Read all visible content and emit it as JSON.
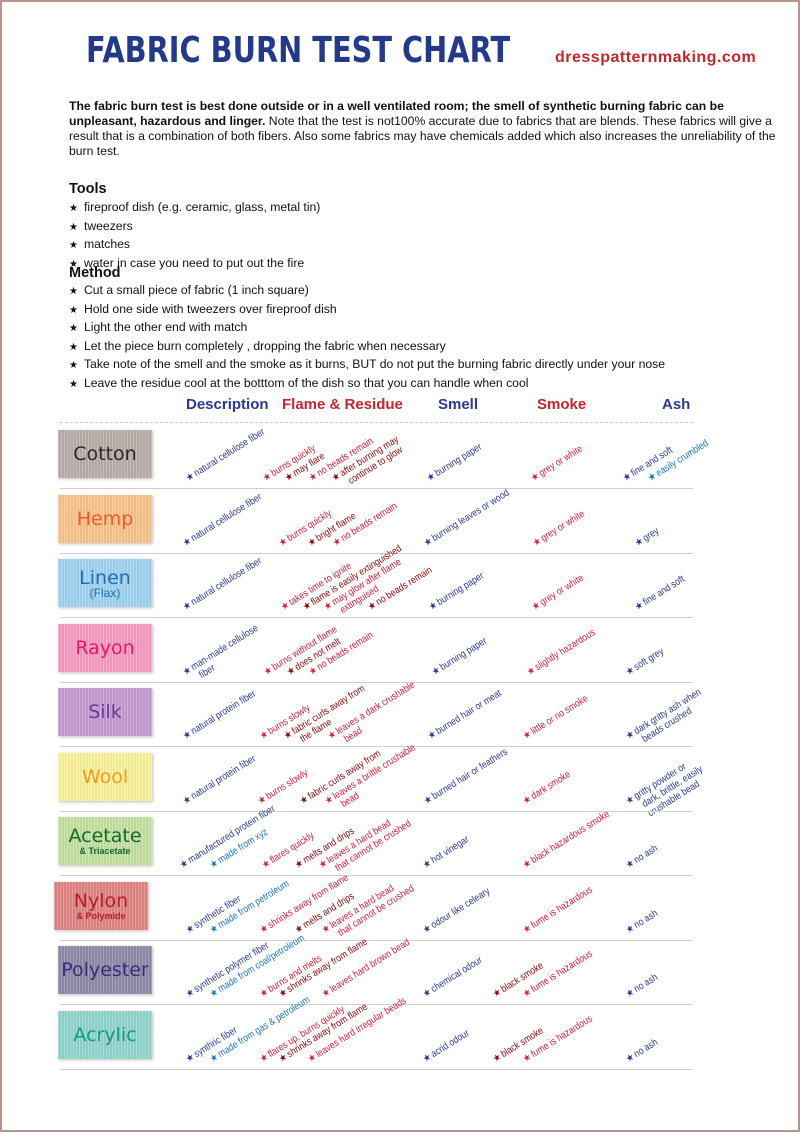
{
  "header": {
    "title": "FABRIC BURN TEST CHART",
    "site": "dresspatternmaking.com"
  },
  "intro": {
    "bold": "The fabric burn test is best done outside or in a well ventilated room; the smell of synthetic burning fabric can be unpleasant, hazardous and linger.",
    "rest": "  Note that the test is not100% accurate due to fabrics that are blends. These fabrics will give a result that is a combination of both fibers.  Also some fabrics may have chemicals added which also increases the unreliability of the burn test."
  },
  "tools": {
    "heading": "Tools",
    "items": [
      "fireproof dish (e.g. ceramic, glass, metal tin)",
      "tweezers",
      "matches",
      "water in case you need to put out the fire"
    ]
  },
  "method": {
    "heading": "Method",
    "items": [
      "Cut a small piece of fabric (1 inch square)",
      "Hold one side with tweezers over fireproof dish",
      "Light the other end with match",
      "Let the piece burn completely ,  dropping the fabric when necessary",
      "Take note of the smell and the smoke as it burns,  BUT do not put the burning fabric directly under your nose",
      "Leave the residue cool at the botttom of the dish so that you can handle when cool"
    ]
  },
  "bullet_icon": "star-icon",
  "columns": [
    "Description",
    "Flame & Residue",
    "Smell",
    "Smoke",
    "Ash"
  ],
  "colors": {
    "navy": "#2b3990",
    "lightblue": "#1c75bc",
    "red": "#d0243c",
    "darkred": "#8b0a0a"
  },
  "rows": [
    {
      "name": "Cotton",
      "sub": "",
      "text_color": "#2a2a2a",
      "bg": "#b9aeaa",
      "items": [
        {
          "lines": [
            "natural cellulose fiber"
          ],
          "c": "navy"
        },
        {
          "lines": [
            "burns quickly"
          ],
          "c": "red"
        },
        {
          "lines": [
            "may flare"
          ],
          "c": "darkred"
        },
        {
          "lines": [
            "no beads remain"
          ],
          "c": "red"
        },
        {
          "lines": [
            "after burning may",
            "continue to glow"
          ],
          "c": "darkred"
        },
        {
          "lines": [
            "burning paper"
          ],
          "c": "navy"
        },
        {
          "lines": [
            "grey or white"
          ],
          "c": "red"
        },
        {
          "lines": [
            "fine and soft"
          ],
          "c": "navy"
        },
        {
          "lines": [
            "easily crumbled"
          ],
          "c": "lightblue"
        }
      ]
    },
    {
      "name": "Hemp",
      "sub": "",
      "text_color": "#f05a28",
      "bg": "#f9c48e",
      "items": [
        {
          "lines": [
            "natural cellulose fiber"
          ],
          "c": "navy"
        },
        {
          "lines": [
            "burns quickly"
          ],
          "c": "red"
        },
        {
          "lines": [
            "bright flame"
          ],
          "c": "darkred"
        },
        {
          "lines": [
            "no beads remain"
          ],
          "c": "red"
        },
        {
          "lines": [
            "burning leaves or wood"
          ],
          "c": "navy"
        },
        {
          "lines": [
            "grey or white"
          ],
          "c": "red"
        },
        {
          "lines": [
            "grey"
          ],
          "c": "navy"
        }
      ]
    },
    {
      "name": "Linen",
      "sub": "(Flax)",
      "text_color": "#1f6fb5",
      "bg": "#a0d4f0",
      "items": [
        {
          "lines": [
            "natural cellulose fiber"
          ],
          "c": "navy"
        },
        {
          "lines": [
            "takes time to ignite"
          ],
          "c": "red"
        },
        {
          "lines": [
            "flame is easily extinguished"
          ],
          "c": "darkred"
        },
        {
          "lines": [
            "may glow after flame",
            "extinguised"
          ],
          "c": "red"
        },
        {
          "lines": [
            "no beads remain"
          ],
          "c": "darkred"
        },
        {
          "lines": [
            "burning paper"
          ],
          "c": "navy"
        },
        {
          "lines": [
            "grey or white"
          ],
          "c": "red"
        },
        {
          "lines": [
            "fine and soft"
          ],
          "c": "navy"
        }
      ]
    },
    {
      "name": "Rayon",
      "sub": "",
      "text_color": "#e8176e",
      "bg": "#f59cc2",
      "items": [
        {
          "lines": [
            "man-made cellulose",
            "fiber"
          ],
          "c": "navy"
        },
        {
          "lines": [
            "burns without flame"
          ],
          "c": "red"
        },
        {
          "lines": [
            "does not melt"
          ],
          "c": "darkred"
        },
        {
          "lines": [
            "no beads remain"
          ],
          "c": "red"
        },
        {
          "lines": [
            "burning paper"
          ],
          "c": "navy"
        },
        {
          "lines": [
            "slightly hazardous"
          ],
          "c": "red"
        },
        {
          "lines": [
            "soft grey"
          ],
          "c": "navy"
        }
      ]
    },
    {
      "name": "Silk",
      "sub": "",
      "text_color": "#6a3a9a",
      "bg": "#c69bd2",
      "items": [
        {
          "lines": [
            "natural protein fiber"
          ],
          "c": "navy"
        },
        {
          "lines": [
            "burns slowly"
          ],
          "c": "red"
        },
        {
          "lines": [
            "fabric curls away from",
            "the flame"
          ],
          "c": "darkred"
        },
        {
          "lines": [
            "leaves a dark crushable",
            "bead"
          ],
          "c": "red"
        },
        {
          "lines": [
            "burned hair or meat"
          ],
          "c": "navy"
        },
        {
          "lines": [
            "little or no smoke"
          ],
          "c": "red"
        },
        {
          "lines": [
            "dark gritty ash when",
            "beads crushed"
          ],
          "c": "navy"
        }
      ]
    },
    {
      "name": "Wool",
      "sub": "",
      "text_color": "#f29b1f",
      "bg": "#faf39c",
      "items": [
        {
          "lines": [
            "natural protein fiber"
          ],
          "c": "navy"
        },
        {
          "lines": [
            "burns slowly"
          ],
          "c": "red"
        },
        {
          "lines": [
            "fabric curls away from"
          ],
          "c": "darkred"
        },
        {
          "lines": [
            "leaves a brittle crushable",
            "bead"
          ],
          "c": "red"
        },
        {
          "lines": [
            "burned hair or feathers"
          ],
          "c": "navy"
        },
        {
          "lines": [
            "dark smoke"
          ],
          "c": "red"
        },
        {
          "lines": [
            "gritty powder or",
            "dark, brittle, easily",
            "crushable bead"
          ],
          "c": "navy"
        }
      ]
    },
    {
      "name": "Acetate",
      "sub": "& Triacetate",
      "text_color": "#0f6b2f",
      "bg": "#c6e1a2",
      "items": [
        {
          "lines": [
            "manufactured protein fiber"
          ],
          "c": "navy"
        },
        {
          "lines": [
            "made from xyz"
          ],
          "c": "lightblue"
        },
        {
          "lines": [
            "flares quickly"
          ],
          "c": "red"
        },
        {
          "lines": [
            "melts and drips"
          ],
          "c": "darkred"
        },
        {
          "lines": [
            "leaves a hard bead",
            "that cannot be crushed"
          ],
          "c": "red"
        },
        {
          "lines": [
            "hot vinegar"
          ],
          "c": "navy"
        },
        {
          "lines": [
            "black hazardous smoke"
          ],
          "c": "red"
        },
        {
          "lines": [
            "no ash"
          ],
          "c": "navy"
        }
      ]
    },
    {
      "name": "Nylon",
      "sub": "& Polymide",
      "text_color": "#b52025",
      "bg": "#e08584",
      "items": [
        {
          "lines": [
            "synthetic fiber"
          ],
          "c": "navy"
        },
        {
          "lines": [
            "made from petroleum"
          ],
          "c": "lightblue"
        },
        {
          "lines": [
            "shrinks away from flame"
          ],
          "c": "red"
        },
        {
          "lines": [
            "melts and drips"
          ],
          "c": "darkred"
        },
        {
          "lines": [
            "leaves a hard bead",
            "that cannot be crushed"
          ],
          "c": "red"
        },
        {
          "lines": [
            "odour like celeary"
          ],
          "c": "navy"
        },
        {
          "lines": [
            "fume is hazardous"
          ],
          "c": "red"
        },
        {
          "lines": [
            "no ash"
          ],
          "c": "navy"
        }
      ]
    },
    {
      "name": "Polyester",
      "sub": "",
      "text_color": "#3a2c7a",
      "bg": "#908aaa",
      "items": [
        {
          "lines": [
            "synthetic polymer  fiber"
          ],
          "c": "navy"
        },
        {
          "lines": [
            "made from coal/petroleum"
          ],
          "c": "lightblue"
        },
        {
          "lines": [
            "burns  and melts"
          ],
          "c": "red"
        },
        {
          "lines": [
            "shrinks away from flame"
          ],
          "c": "darkred"
        },
        {
          "lines": [
            "leaves hard brown bead"
          ],
          "c": "red"
        },
        {
          "lines": [
            "chemical odour"
          ],
          "c": "navy"
        },
        {
          "lines": [
            "black smoke"
          ],
          "c": "darkred"
        },
        {
          "lines": [
            "fume is hazardous"
          ],
          "c": "red"
        },
        {
          "lines": [
            "no ash"
          ],
          "c": "navy"
        }
      ]
    },
    {
      "name": "Acrylic",
      "sub": "",
      "text_color": "#139a84",
      "bg": "#92d5cd",
      "items": [
        {
          "lines": [
            "synthric fiber"
          ],
          "c": "navy"
        },
        {
          "lines": [
            "made from gas & petroleum"
          ],
          "c": "lightblue"
        },
        {
          "lines": [
            "flares up, burns quickly"
          ],
          "c": "red"
        },
        {
          "lines": [
            "shrinks away from flame"
          ],
          "c": "darkred"
        },
        {
          "lines": [
            "leaves hard irregular beads"
          ],
          "c": "red"
        },
        {
          "lines": [
            "acrid odour"
          ],
          "c": "navy"
        },
        {
          "lines": [
            "black smoke"
          ],
          "c": "darkred"
        },
        {
          "lines": [
            "fume is hazardous"
          ],
          "c": "red"
        },
        {
          "lines": [
            "no ash"
          ],
          "c": "navy"
        }
      ]
    }
  ]
}
